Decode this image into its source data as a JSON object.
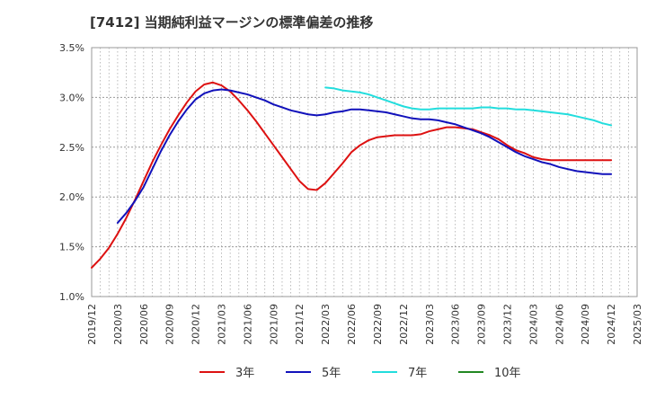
{
  "chart_data": {
    "type": "line",
    "title": "[7412]  当期純利益マージンの標準偏差の推移",
    "xlabel": "",
    "ylabel": "",
    "ylim": [
      1.0,
      3.5
    ],
    "y_ticks": [
      "1.0%",
      "1.5%",
      "2.0%",
      "2.5%",
      "3.0%",
      "3.5%"
    ],
    "y_tick_values": [
      1.0,
      1.5,
      2.0,
      2.5,
      3.0,
      3.5
    ],
    "x_ticks": [
      "2019/12",
      "2020/03",
      "2020/06",
      "2020/09",
      "2020/12",
      "2021/03",
      "2021/06",
      "2021/09",
      "2021/12",
      "2022/03",
      "2022/06",
      "2022/09",
      "2022/12",
      "2023/03",
      "2023/06",
      "2023/09",
      "2023/12",
      "2024/03",
      "2024/06",
      "2024/09",
      "2024/12",
      "2025/03"
    ],
    "grid": true,
    "legend_position": "bottom",
    "colors": {
      "3年": "#dd1111",
      "5年": "#1111bb",
      "7年": "#22dddd",
      "10年": "#228822"
    },
    "series": [
      {
        "name": "3年",
        "color": "#dd1111",
        "points": [
          [
            "2019/12",
            1.29
          ],
          [
            "2020/01",
            1.38
          ],
          [
            "2020/02",
            1.49
          ],
          [
            "2020/03",
            1.63
          ],
          [
            "2020/04",
            1.79
          ],
          [
            "2020/05",
            1.97
          ],
          [
            "2020/06",
            2.16
          ],
          [
            "2020/07",
            2.35
          ],
          [
            "2020/08",
            2.52
          ],
          [
            "2020/09",
            2.68
          ],
          [
            "2020/10",
            2.82
          ],
          [
            "2020/11",
            2.95
          ],
          [
            "2020/12",
            3.06
          ],
          [
            "2021/01",
            3.13
          ],
          [
            "2021/02",
            3.15
          ],
          [
            "2021/03",
            3.12
          ],
          [
            "2021/04",
            3.06
          ],
          [
            "2021/05",
            2.97
          ],
          [
            "2021/06",
            2.87
          ],
          [
            "2021/07",
            2.76
          ],
          [
            "2021/08",
            2.64
          ],
          [
            "2021/09",
            2.52
          ],
          [
            "2021/10",
            2.4
          ],
          [
            "2021/11",
            2.28
          ],
          [
            "2021/12",
            2.16
          ],
          [
            "2022/01",
            2.08
          ],
          [
            "2022/02",
            2.07
          ],
          [
            "2022/03",
            2.14
          ],
          [
            "2022/04",
            2.24
          ],
          [
            "2022/05",
            2.34
          ],
          [
            "2022/06",
            2.45
          ],
          [
            "2022/07",
            2.52
          ],
          [
            "2022/08",
            2.57
          ],
          [
            "2022/09",
            2.6
          ],
          [
            "2022/10",
            2.61
          ],
          [
            "2022/11",
            2.62
          ],
          [
            "2022/12",
            2.62
          ],
          [
            "2023/01",
            2.62
          ],
          [
            "2023/02",
            2.63
          ],
          [
            "2023/03",
            2.66
          ],
          [
            "2023/04",
            2.68
          ],
          [
            "2023/05",
            2.7
          ],
          [
            "2023/06",
            2.7
          ],
          [
            "2023/07",
            2.69
          ],
          [
            "2023/08",
            2.68
          ],
          [
            "2023/09",
            2.65
          ],
          [
            "2023/10",
            2.62
          ],
          [
            "2023/11",
            2.58
          ],
          [
            "2023/12",
            2.52
          ],
          [
            "2024/01",
            2.47
          ],
          [
            "2024/02",
            2.44
          ],
          [
            "2024/03",
            2.4
          ],
          [
            "2024/04",
            2.38
          ],
          [
            "2024/05",
            2.37
          ],
          [
            "2024/06",
            2.37
          ],
          [
            "2024/07",
            2.37
          ],
          [
            "2024/08",
            2.37
          ],
          [
            "2024/09",
            2.37
          ],
          [
            "2024/10",
            2.37
          ],
          [
            "2024/11",
            2.37
          ],
          [
            "2024/12",
            2.37
          ]
        ]
      },
      {
        "name": "5年",
        "color": "#1111bb",
        "points": [
          [
            "2020/03",
            1.74
          ],
          [
            "2020/04",
            1.84
          ],
          [
            "2020/05",
            1.96
          ],
          [
            "2020/06",
            2.1
          ],
          [
            "2020/07",
            2.28
          ],
          [
            "2020/08",
            2.46
          ],
          [
            "2020/09",
            2.62
          ],
          [
            "2020/10",
            2.76
          ],
          [
            "2020/11",
            2.88
          ],
          [
            "2020/12",
            2.98
          ],
          [
            "2021/01",
            3.04
          ],
          [
            "2021/02",
            3.07
          ],
          [
            "2021/03",
            3.08
          ],
          [
            "2021/04",
            3.07
          ],
          [
            "2021/05",
            3.05
          ],
          [
            "2021/06",
            3.03
          ],
          [
            "2021/07",
            3.0
          ],
          [
            "2021/08",
            2.97
          ],
          [
            "2021/09",
            2.93
          ],
          [
            "2021/10",
            2.9
          ],
          [
            "2021/11",
            2.87
          ],
          [
            "2021/12",
            2.85
          ],
          [
            "2022/01",
            2.83
          ],
          [
            "2022/02",
            2.82
          ],
          [
            "2022/03",
            2.83
          ],
          [
            "2022/04",
            2.85
          ],
          [
            "2022/05",
            2.86
          ],
          [
            "2022/06",
            2.88
          ],
          [
            "2022/07",
            2.88
          ],
          [
            "2022/08",
            2.87
          ],
          [
            "2022/09",
            2.86
          ],
          [
            "2022/10",
            2.85
          ],
          [
            "2022/11",
            2.83
          ],
          [
            "2022/12",
            2.81
          ],
          [
            "2023/01",
            2.79
          ],
          [
            "2023/02",
            2.78
          ],
          [
            "2023/03",
            2.78
          ],
          [
            "2023/04",
            2.77
          ],
          [
            "2023/05",
            2.75
          ],
          [
            "2023/06",
            2.73
          ],
          [
            "2023/07",
            2.7
          ],
          [
            "2023/08",
            2.67
          ],
          [
            "2023/09",
            2.64
          ],
          [
            "2023/10",
            2.6
          ],
          [
            "2023/11",
            2.55
          ],
          [
            "2023/12",
            2.5
          ],
          [
            "2024/01",
            2.45
          ],
          [
            "2024/02",
            2.41
          ],
          [
            "2024/03",
            2.38
          ],
          [
            "2024/04",
            2.35
          ],
          [
            "2024/05",
            2.33
          ],
          [
            "2024/06",
            2.3
          ],
          [
            "2024/07",
            2.28
          ],
          [
            "2024/08",
            2.26
          ],
          [
            "2024/09",
            2.25
          ],
          [
            "2024/10",
            2.24
          ],
          [
            "2024/11",
            2.23
          ],
          [
            "2024/12",
            2.23
          ]
        ]
      },
      {
        "name": "7年",
        "color": "#22dddd",
        "points": [
          [
            "2022/03",
            3.1
          ],
          [
            "2022/04",
            3.09
          ],
          [
            "2022/05",
            3.07
          ],
          [
            "2022/06",
            3.06
          ],
          [
            "2022/07",
            3.05
          ],
          [
            "2022/08",
            3.03
          ],
          [
            "2022/09",
            3.0
          ],
          [
            "2022/10",
            2.97
          ],
          [
            "2022/11",
            2.94
          ],
          [
            "2022/12",
            2.91
          ],
          [
            "2023/01",
            2.89
          ],
          [
            "2023/02",
            2.88
          ],
          [
            "2023/03",
            2.88
          ],
          [
            "2023/04",
            2.89
          ],
          [
            "2023/05",
            2.89
          ],
          [
            "2023/06",
            2.89
          ],
          [
            "2023/07",
            2.89
          ],
          [
            "2023/08",
            2.89
          ],
          [
            "2023/09",
            2.9
          ],
          [
            "2023/10",
            2.9
          ],
          [
            "2023/11",
            2.89
          ],
          [
            "2023/12",
            2.89
          ],
          [
            "2024/01",
            2.88
          ],
          [
            "2024/02",
            2.88
          ],
          [
            "2024/03",
            2.87
          ],
          [
            "2024/04",
            2.86
          ],
          [
            "2024/05",
            2.85
          ],
          [
            "2024/06",
            2.84
          ],
          [
            "2024/07",
            2.83
          ],
          [
            "2024/08",
            2.81
          ],
          [
            "2024/09",
            2.79
          ],
          [
            "2024/10",
            2.77
          ],
          [
            "2024/11",
            2.74
          ],
          [
            "2024/12",
            2.72
          ]
        ]
      },
      {
        "name": "10年",
        "color": "#228822",
        "points": []
      }
    ]
  }
}
